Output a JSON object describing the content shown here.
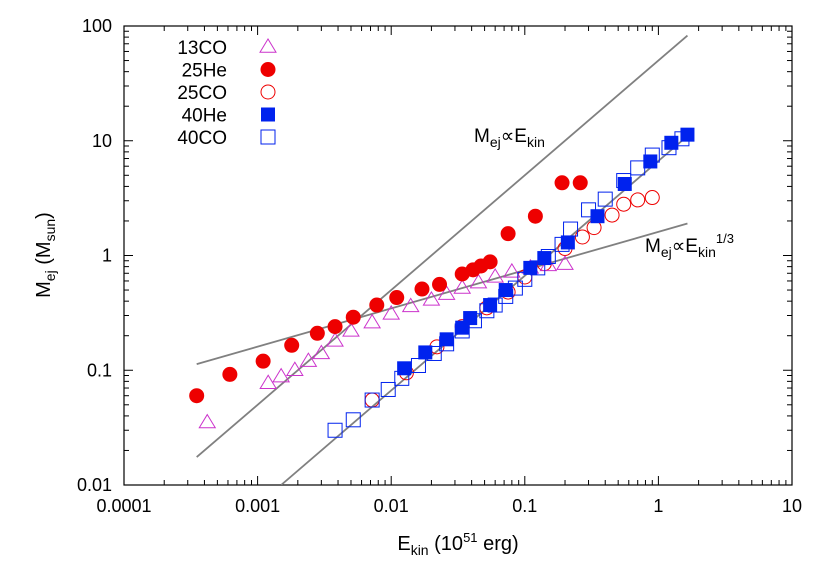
{
  "chart_data": {
    "type": "scatter",
    "xscale": "log",
    "yscale": "log",
    "xlim": [
      0.0001,
      10
    ],
    "ylim": [
      0.01,
      100
    ],
    "grid": false,
    "legend_position": "top-left",
    "x_tick_labels": [
      "0.0001",
      "0.001",
      "0.01",
      "0.1",
      "1",
      "10"
    ],
    "y_tick_labels": [
      "0.01",
      "0.1",
      "1",
      "10",
      "100"
    ],
    "x_ticks": [
      0.0001,
      0.001,
      0.01,
      0.1,
      1,
      10
    ],
    "y_ticks": [
      0.01,
      0.1,
      1,
      10,
      100
    ],
    "xlabel": {
      "main": "E",
      "sub": "kin",
      "rest": " (10",
      "sup": "51",
      "end": " erg)"
    },
    "ylabel": {
      "main": "M",
      "sub": "ej",
      "rest": " (M",
      "sub2": "sun",
      "end": ")"
    },
    "series": [
      {
        "name": "13CO",
        "marker": "triangle-open",
        "color": "#cc33cc",
        "x": [
          0.00042,
          0.0012,
          0.0015,
          0.0019,
          0.0024,
          0.003,
          0.0038,
          0.005,
          0.0072,
          0.01,
          0.014,
          0.02,
          0.026,
          0.034,
          0.045,
          0.06,
          0.08,
          0.11,
          0.15,
          0.2
        ],
        "y": [
          0.035,
          0.077,
          0.088,
          0.1,
          0.12,
          0.14,
          0.18,
          0.22,
          0.26,
          0.31,
          0.36,
          0.41,
          0.46,
          0.52,
          0.58,
          0.65,
          0.72,
          0.78,
          0.82,
          0.84
        ]
      },
      {
        "name": "25He",
        "marker": "circle-filled",
        "color": "#ee0000",
        "x": [
          0.00035,
          0.00062,
          0.0011,
          0.0018,
          0.0028,
          0.0038,
          0.0052,
          0.0078,
          0.011,
          0.017,
          0.023,
          0.034,
          0.041,
          0.047,
          0.055,
          0.075,
          0.12,
          0.19,
          0.26
        ],
        "y": [
          0.06,
          0.092,
          0.12,
          0.165,
          0.21,
          0.24,
          0.29,
          0.37,
          0.43,
          0.51,
          0.56,
          0.69,
          0.75,
          0.81,
          0.88,
          1.55,
          2.2,
          4.3,
          4.3
        ]
      },
      {
        "name": "25CO",
        "marker": "circle-open",
        "color": "#ee0000",
        "x": [
          0.0072,
          0.013,
          0.022,
          0.034,
          0.052,
          0.075,
          0.1,
          0.14,
          0.2,
          0.27,
          0.33,
          0.45,
          0.55,
          0.7,
          0.9
        ],
        "y": [
          0.055,
          0.095,
          0.16,
          0.24,
          0.35,
          0.48,
          0.65,
          0.85,
          1.15,
          1.45,
          1.75,
          2.25,
          2.8,
          3.05,
          3.2
        ]
      },
      {
        "name": "40He",
        "marker": "square-filled",
        "color": "#0022ee",
        "x": [
          0.0125,
          0.018,
          0.026,
          0.034,
          0.039,
          0.055,
          0.072,
          0.11,
          0.14,
          0.21,
          0.35,
          0.56,
          0.87,
          1.25,
          1.65
        ],
        "y": [
          0.104,
          0.143,
          0.186,
          0.235,
          0.285,
          0.37,
          0.5,
          0.78,
          0.95,
          1.3,
          2.2,
          4.2,
          6.6,
          9.6,
          11.3
        ]
      },
      {
        "name": "40CO",
        "marker": "square-open",
        "color": "#0022ee",
        "x": [
          0.0038,
          0.0052,
          0.0072,
          0.0095,
          0.012,
          0.016,
          0.021,
          0.026,
          0.034,
          0.042,
          0.052,
          0.06,
          0.072,
          0.085,
          0.1,
          0.125,
          0.15,
          0.19,
          0.22,
          0.3,
          0.4,
          0.55,
          0.7,
          0.9,
          1.2,
          1.5
        ],
        "y": [
          0.03,
          0.037,
          0.055,
          0.068,
          0.085,
          0.11,
          0.14,
          0.17,
          0.22,
          0.27,
          0.33,
          0.37,
          0.44,
          0.52,
          0.62,
          0.78,
          0.98,
          1.25,
          1.7,
          2.5,
          3.1,
          4.5,
          5.8,
          7.5,
          8.7,
          10.4
        ]
      }
    ],
    "lines": [
      {
        "label_main": "M",
        "label_sub": "ej",
        "label_mid": "∝E",
        "label_sub2": "kin",
        "label_sup": "",
        "x": [
          0.00035,
          1.65
        ],
        "y": [
          0.0175,
          82.6
        ],
        "color": "#808080"
      },
      {
        "label_main": "M",
        "label_sub": "ej",
        "label_mid": "∝E",
        "label_sub2": "kin",
        "label_sup": "1/3",
        "x": [
          0.00035,
          1.65
        ],
        "y": [
          0.113,
          1.9
        ],
        "color": "#808080"
      },
      {
        "label_main": "",
        "label_sub": "",
        "label_mid": "",
        "label_sub2": "",
        "label_sup": "",
        "x": [
          0.0015,
          1.65
        ],
        "y": [
          0.01,
          11.0
        ],
        "color": "#808080"
      }
    ]
  }
}
